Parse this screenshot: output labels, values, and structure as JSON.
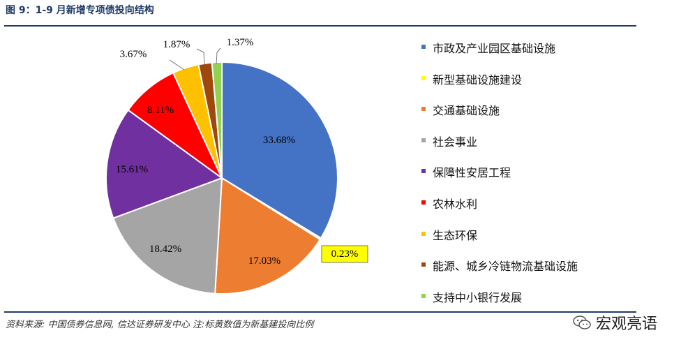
{
  "title": "图 9：1-9 月新增专项债投向结构",
  "source": "资料来源: 中国债券信息网, 信达证券研发中心    注:标黄数值为新基建投向比例",
  "watermark": "宏观亮语",
  "chart_data": {
    "type": "pie",
    "title": "图 9：1-9 月新增专项债投向结构",
    "legend_position": "right",
    "slices": [
      {
        "label": "市政及产业园区基础设施",
        "value": 33.68,
        "display": "33.68%",
        "color": "#4472c4"
      },
      {
        "label": "新型基础设施建设",
        "value": 0.23,
        "display": "0.23%",
        "color": "#ffff00",
        "highlighted": true
      },
      {
        "label": "交通基础设施",
        "value": 17.03,
        "display": "17.03%",
        "color": "#ed7d31"
      },
      {
        "label": "社会事业",
        "value": 18.42,
        "display": "18.42%",
        "color": "#a5a5a5"
      },
      {
        "label": "保障性安居工程",
        "value": 15.61,
        "display": "15.61%",
        "color": "#7030a0"
      },
      {
        "label": "农林水利",
        "value": 8.11,
        "display": "8.11%",
        "color": "#ff0000"
      },
      {
        "label": "生态环保",
        "value": 3.67,
        "display": "3.67%",
        "color": "#ffc000"
      },
      {
        "label": "能源、城乡冷链物流基础设施",
        "value": 1.87,
        "display": "1.87%",
        "color": "#9e480e"
      },
      {
        "label": "支持中小银行发展",
        "value": 1.37,
        "display": "1.37%",
        "color": "#92d050"
      }
    ]
  }
}
